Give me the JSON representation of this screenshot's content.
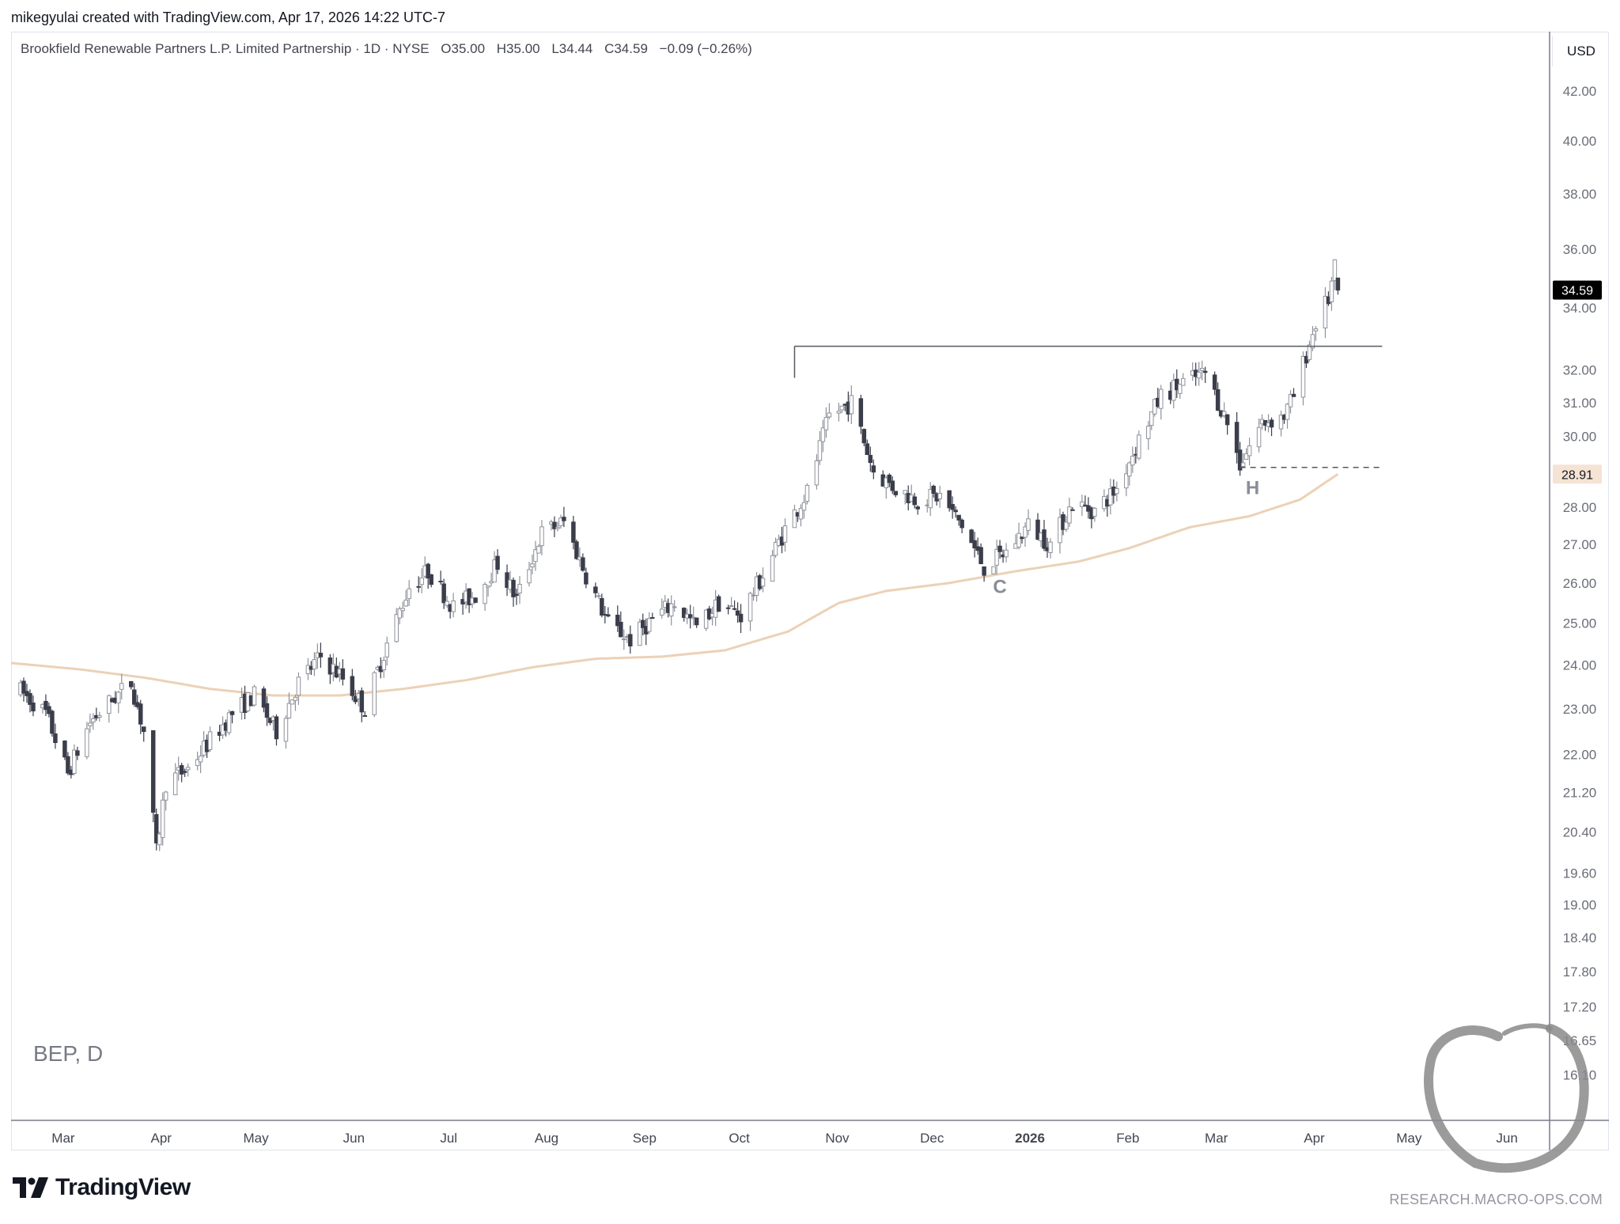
{
  "credit": "mikegyulai created with TradingView.com, Apr 17, 2026 14:22 UTC-7",
  "legend": {
    "name": "Brookfield Renewable Partners L.P. Limited Partnership · 1D · NYSE",
    "open": "O35.00",
    "high": "H35.00",
    "low": "L34.44",
    "close": "C34.59",
    "change": "−0.09 (−0.26%)"
  },
  "currency": "USD",
  "symbol_watermark": "BEP, D",
  "brand": "TradingView",
  "footer_site": "RESEARCH.MACRO-OPS.COM",
  "colors": {
    "up_candle_fill": "#ffffff",
    "candle_outline": "#8f929b",
    "down_candle_fill": "#3a3d4a",
    "moving_average": "#ecd1b7",
    "axis_text": "#6a6d78",
    "last_price_tag": "#000000",
    "ma_tag": "#f5e3d3"
  },
  "chart_data": {
    "type": "candlestick",
    "symbol": "BEP",
    "interval": "1D",
    "y_scale": "log",
    "ylim": [
      15.4,
      44.5
    ],
    "x_range": [
      "2025-02-21",
      "2026-06-22"
    ],
    "y_ticks": [
      "42.00",
      "40.00",
      "38.00",
      "36.00",
      "34.00",
      "32.00",
      "31.00",
      "30.00",
      "28.00",
      "27.00",
      "26.00",
      "25.00",
      "24.00",
      "23.00",
      "22.00",
      "21.20",
      "20.40",
      "19.60",
      "19.00",
      "18.40",
      "17.80",
      "17.20",
      "16.65",
      "16.10"
    ],
    "x_ticks": [
      {
        "label": "Mar",
        "date": "2025-03-01",
        "bold": false
      },
      {
        "label": "Apr",
        "date": "2025-04-01",
        "bold": false
      },
      {
        "label": "May",
        "date": "2025-05-01",
        "bold": false
      },
      {
        "label": "Jun",
        "date": "2025-06-01",
        "bold": false
      },
      {
        "label": "Jul",
        "date": "2025-07-01",
        "bold": false
      },
      {
        "label": "Aug",
        "date": "2025-08-01",
        "bold": false
      },
      {
        "label": "Sep",
        "date": "2025-09-01",
        "bold": false
      },
      {
        "label": "Oct",
        "date": "2025-10-01",
        "bold": false
      },
      {
        "label": "Nov",
        "date": "2025-11-01",
        "bold": false
      },
      {
        "label": "Dec",
        "date": "2025-12-01",
        "bold": false
      },
      {
        "label": "2026",
        "date": "2026-01-01",
        "bold": true
      },
      {
        "label": "Feb",
        "date": "2026-02-01",
        "bold": false
      },
      {
        "label": "Mar",
        "date": "2026-03-01",
        "bold": false
      },
      {
        "label": "Apr",
        "date": "2026-04-01",
        "bold": false
      },
      {
        "label": "May",
        "date": "2026-05-01",
        "bold": false
      },
      {
        "label": "Jun",
        "date": "2026-06-01",
        "bold": false
      }
    ],
    "close_path": [
      [
        "2025-02-24",
        23.4
      ],
      [
        "2025-03-04",
        22.9
      ],
      [
        "2025-03-11",
        21.6
      ],
      [
        "2025-03-18",
        22.7
      ],
      [
        "2025-03-25",
        23.2
      ],
      [
        "2025-03-31",
        23.6
      ],
      [
        "2025-04-04",
        22.5
      ],
      [
        "2025-04-08",
        20.0
      ],
      [
        "2025-04-11",
        21.4
      ],
      [
        "2025-04-18",
        21.7
      ],
      [
        "2025-04-25",
        22.3
      ],
      [
        "2025-05-02",
        22.9
      ],
      [
        "2025-05-09",
        23.3
      ],
      [
        "2025-05-16",
        22.5
      ],
      [
        "2025-05-23",
        23.6
      ],
      [
        "2025-05-30",
        24.2
      ],
      [
        "2025-06-06",
        23.7
      ],
      [
        "2025-06-13",
        23.0
      ],
      [
        "2025-06-20",
        24.5
      ],
      [
        "2025-06-27",
        25.9
      ],
      [
        "2025-07-03",
        26.3
      ],
      [
        "2025-07-11",
        25.4
      ],
      [
        "2025-07-18",
        25.7
      ],
      [
        "2025-07-25",
        26.5
      ],
      [
        "2025-07-31",
        25.6
      ],
      [
        "2025-08-08",
        27.3
      ],
      [
        "2025-08-15",
        27.6
      ],
      [
        "2025-08-22",
        26.2
      ],
      [
        "2025-08-29",
        25.0
      ],
      [
        "2025-09-05",
        24.6
      ],
      [
        "2025-09-12",
        25.1
      ],
      [
        "2025-09-19",
        25.5
      ],
      [
        "2025-09-26",
        24.9
      ],
      [
        "2025-10-03",
        25.5
      ],
      [
        "2025-10-10",
        25.2
      ],
      [
        "2025-10-17",
        26.2
      ],
      [
        "2025-10-24",
        27.4
      ],
      [
        "2025-10-31",
        28.4
      ],
      [
        "2025-11-07",
        30.6
      ],
      [
        "2025-11-14",
        31.0
      ],
      [
        "2025-11-21",
        29.0
      ],
      [
        "2025-11-28",
        28.5
      ],
      [
        "2025-12-05",
        28.2
      ],
      [
        "2025-12-12",
        28.3
      ],
      [
        "2025-12-19",
        27.5
      ],
      [
        "2025-12-26",
        26.4
      ],
      [
        "2026-01-02",
        26.8
      ],
      [
        "2026-01-09",
        27.5
      ],
      [
        "2026-01-16",
        27.0
      ],
      [
        "2026-01-23",
        28.1
      ],
      [
        "2026-01-30",
        27.9
      ],
      [
        "2026-02-06",
        28.5
      ],
      [
        "2026-02-13",
        29.9
      ],
      [
        "2026-02-20",
        31.2
      ],
      [
        "2026-02-27",
        31.6
      ],
      [
        "2026-03-06",
        31.9
      ],
      [
        "2026-03-13",
        30.4
      ],
      [
        "2026-03-17",
        29.2
      ],
      [
        "2026-03-24",
        30.4
      ],
      [
        "2026-03-31",
        30.6
      ],
      [
        "2026-04-03",
        31.2
      ],
      [
        "2026-04-07",
        32.5
      ],
      [
        "2026-04-10",
        33.5
      ],
      [
        "2026-04-14",
        34.3
      ],
      [
        "2026-04-16",
        35.3
      ],
      [
        "2026-04-17",
        34.59
      ]
    ],
    "last_bar": {
      "date": "2026-04-17",
      "open": 35.0,
      "high": 35.0,
      "low": 34.44,
      "close": 34.59
    },
    "moving_average": {
      "label_value": "28.91",
      "points": [
        [
          "2025-02-21",
          24.05
        ],
        [
          "2025-03-15",
          23.9
        ],
        [
          "2025-04-05",
          23.7
        ],
        [
          "2025-04-25",
          23.45
        ],
        [
          "2025-05-15",
          23.3
        ],
        [
          "2025-06-05",
          23.3
        ],
        [
          "2025-06-25",
          23.45
        ],
        [
          "2025-07-15",
          23.65
        ],
        [
          "2025-08-05",
          23.95
        ],
        [
          "2025-08-25",
          24.15
        ],
        [
          "2025-09-15",
          24.2
        ],
        [
          "2025-10-05",
          24.35
        ],
        [
          "2025-10-25",
          24.8
        ],
        [
          "2025-11-10",
          25.5
        ],
        [
          "2025-11-25",
          25.8
        ],
        [
          "2025-12-15",
          26.0
        ],
        [
          "2026-01-05",
          26.3
        ],
        [
          "2026-01-25",
          26.55
        ],
        [
          "2026-02-10",
          26.9
        ],
        [
          "2026-03-01",
          27.45
        ],
        [
          "2026-03-20",
          27.75
        ],
        [
          "2026-04-05",
          28.2
        ],
        [
          "2026-04-17",
          28.91
        ]
      ]
    },
    "last_price": "34.59",
    "horizontal_lines": [
      {
        "start": "2025-10-27",
        "end": "2026-05-01",
        "price": 32.75,
        "style": "solid"
      },
      {
        "start": "2026-03-17",
        "end": "2026-05-01",
        "price": 29.1,
        "style": "dashed"
      }
    ],
    "annotations": [
      {
        "text": "C",
        "date": "2025-12-31",
        "price": 25.75
      },
      {
        "text": "H",
        "date": "2026-03-21",
        "price": 28.35
      }
    ]
  }
}
